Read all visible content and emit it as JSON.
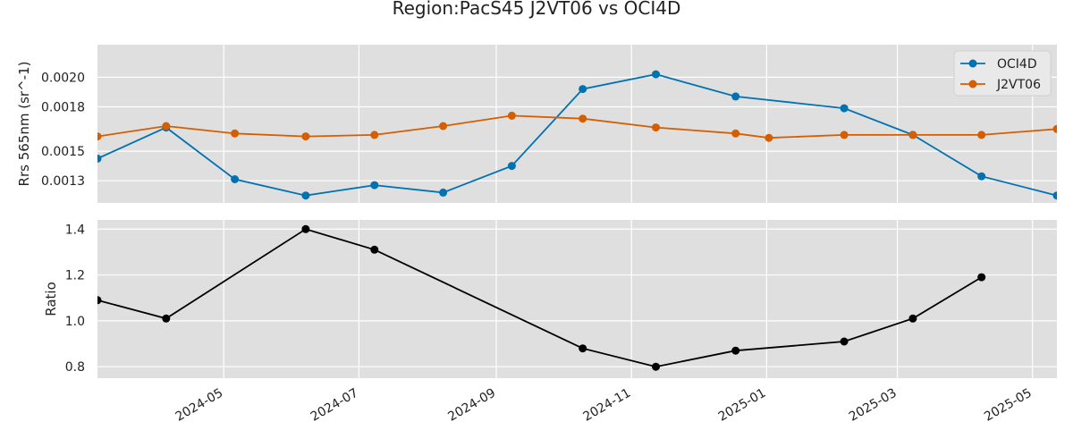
{
  "title": "Region:PacS45 J2VT06 vs OCI4D",
  "chart_data": [
    {
      "type": "line",
      "ylabel": "Rrs 565nm (sr^-1)",
      "ylim": [
        0.00115,
        0.00222
      ],
      "yticks": [
        0.0013,
        0.0015,
        0.0018,
        0.002
      ],
      "ytick_labels": [
        "0.0013",
        "0.0015",
        "0.0018",
        "0.0020"
      ],
      "legend": "top-right",
      "grid": true,
      "series": [
        {
          "name": "OCI4D",
          "color": "#0072B2",
          "x": [
            "2024-03-05",
            "2024-04-05",
            "2024-05-06",
            "2024-06-07",
            "2024-07-08",
            "2024-08-08",
            "2024-09-08",
            "2024-10-10",
            "2024-11-12",
            "2024-12-18",
            "2025-02-05",
            "2025-03-08",
            "2025-04-08",
            "2025-05-12"
          ],
          "y": [
            0.00145,
            0.00166,
            0.00131,
            0.0012,
            0.00127,
            0.00122,
            0.0014,
            0.00192,
            0.00202,
            0.00187,
            0.00179,
            0.00161,
            0.00133,
            0.0012
          ]
        },
        {
          "name": "J2VT06",
          "color": "#D55E00",
          "x": [
            "2024-03-05",
            "2024-04-05",
            "2024-05-06",
            "2024-06-07",
            "2024-07-08",
            "2024-08-08",
            "2024-09-08",
            "2024-10-10",
            "2024-11-12",
            "2024-12-18",
            "2025-01-02",
            "2025-02-05",
            "2025-03-08",
            "2025-04-08",
            "2025-05-12"
          ],
          "y": [
            0.0016,
            0.00167,
            0.00162,
            0.0016,
            0.00161,
            0.00167,
            0.00174,
            0.00172,
            0.00166,
            0.00162,
            0.00159,
            0.00161,
            0.00161,
            0.00161,
            0.00165
          ]
        }
      ]
    },
    {
      "type": "line",
      "ylabel": "Ratio",
      "ylim": [
        0.75,
        1.44
      ],
      "yticks": [
        0.8,
        1.0,
        1.2,
        1.4
      ],
      "ytick_labels": [
        "0.8",
        "1.0",
        "1.2",
        "1.4"
      ],
      "xlim": [
        "2024-03-05",
        "2025-05-12"
      ],
      "xticks": [
        "2024-05-01",
        "2024-07-01",
        "2024-09-01",
        "2024-11-01",
        "2025-01-01",
        "2025-03-01",
        "2025-05-01"
      ],
      "xtick_labels": [
        "2024-05",
        "2024-07",
        "2024-09",
        "2024-11",
        "2025-01",
        "2025-03",
        "2025-05"
      ],
      "grid": true,
      "series": [
        {
          "color": "#000000",
          "x": [
            "2024-03-05",
            "2024-04-05",
            "2024-06-07",
            "2024-07-08",
            "2024-10-10",
            "2024-11-12",
            "2024-12-18",
            "2025-02-05",
            "2025-03-08",
            "2025-04-08"
          ],
          "y": [
            1.09,
            1.01,
            1.4,
            1.31,
            0.88,
            0.8,
            0.87,
            0.91,
            1.01,
            1.19
          ]
        }
      ]
    }
  ]
}
